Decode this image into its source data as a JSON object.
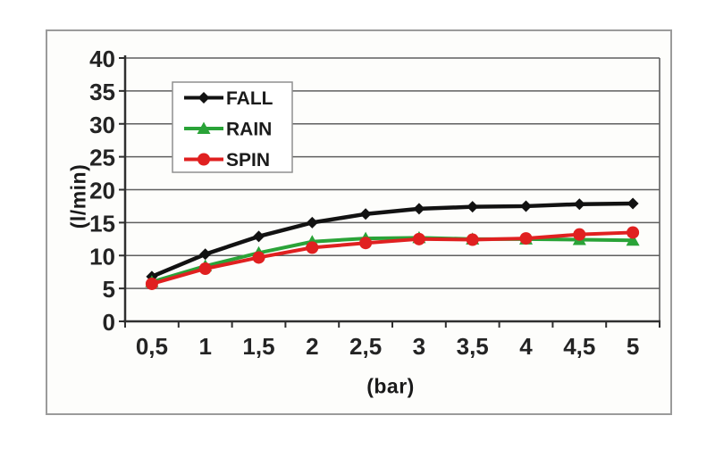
{
  "figure": {
    "background": "#ffffff",
    "frame_border_color": "#9b9b9b",
    "plot_background": "#fdfdfb",
    "gridline_color": "#5f5f5f",
    "axis_color": "#2f2f2f",
    "tick_label_color": "#242424",
    "legend": {
      "border_color": "#8f8f8f",
      "background": "#ffffff",
      "entries": [
        "FALL",
        "RAIN",
        "SPIN"
      ]
    }
  },
  "chart_data": {
    "type": "line",
    "title": "",
    "xlabel": "(bar)",
    "ylabel": "(l/min)",
    "categories": [
      0.5,
      1,
      1.5,
      2,
      2.5,
      3,
      3.5,
      4,
      4.5,
      5
    ],
    "x_tick_labels": [
      "0,5",
      "1",
      "1,5",
      "2",
      "2,5",
      "3",
      "3,5",
      "4",
      "4,5",
      "5"
    ],
    "ylim": [
      0,
      40
    ],
    "y_tick_step": 5,
    "y_tick_values": [
      0,
      5,
      10,
      15,
      20,
      25,
      30,
      35,
      40
    ],
    "y_tick_labels": [
      "0",
      "5",
      "10",
      "15",
      "20",
      "25",
      "30",
      "35",
      "40"
    ],
    "grid": true,
    "legend_position": "upper-left-inside",
    "series": [
      {
        "name": "FALL",
        "color": "#121212",
        "marker": "diamond",
        "values": [
          6.8,
          10.2,
          12.9,
          15.0,
          16.3,
          17.1,
          17.4,
          17.5,
          17.8,
          17.9
        ]
      },
      {
        "name": "RAIN",
        "color": "#2aa338",
        "marker": "triangle",
        "values": [
          6.0,
          8.4,
          10.4,
          12.1,
          12.6,
          12.7,
          12.5,
          12.5,
          12.4,
          12.3
        ]
      },
      {
        "name": "SPIN",
        "color": "#e02020",
        "marker": "circle",
        "values": [
          5.7,
          8.0,
          9.7,
          11.2,
          11.9,
          12.5,
          12.4,
          12.6,
          13.2,
          13.5
        ]
      }
    ]
  }
}
